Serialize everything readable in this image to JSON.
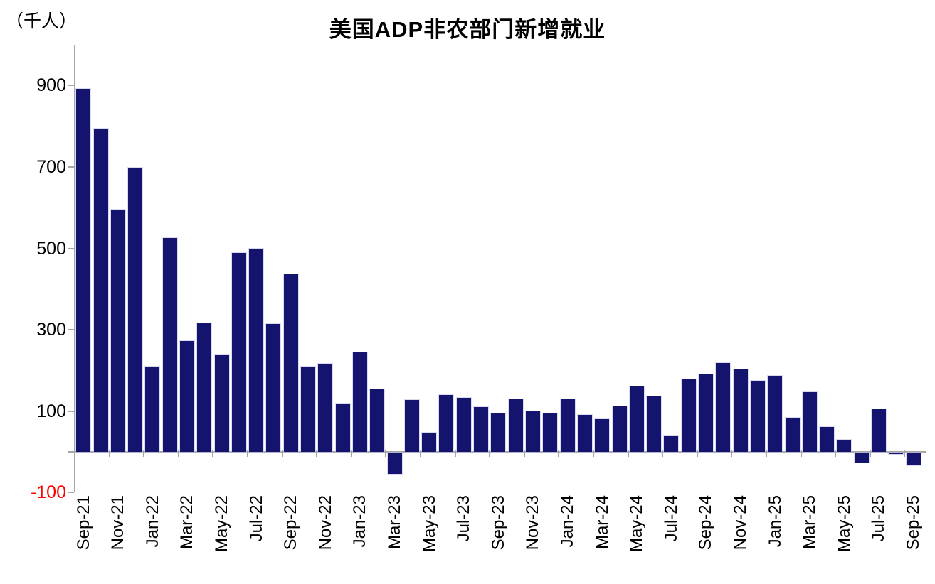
{
  "chart": {
    "title": "美国ADP非农部门新增就业",
    "unit_label": "（千人）"
  },
  "chart_data": {
    "type": "bar",
    "title": "美国ADP非农部门新增就业",
    "ylabel": "（千人）",
    "categories": [
      "Sep-21",
      "Oct-21",
      "Nov-21",
      "Dec-21",
      "Jan-22",
      "Feb-22",
      "Mar-22",
      "Apr-22",
      "May-22",
      "Jun-22",
      "Jul-22",
      "Aug-22",
      "Sep-22",
      "Oct-22",
      "Nov-22",
      "Dec-22",
      "Jan-23",
      "Feb-23",
      "Mar-23",
      "Apr-23",
      "May-23",
      "Jun-23",
      "Jul-23",
      "Aug-23",
      "Sep-23",
      "Oct-23",
      "Nov-23",
      "Dec-23",
      "Jan-24",
      "Feb-24",
      "Mar-24",
      "Apr-24",
      "May-24",
      "Jun-24",
      "Jul-24",
      "Aug-24",
      "Sep-24",
      "Oct-24",
      "Nov-24",
      "Dec-24",
      "Jan-25",
      "Feb-25",
      "Mar-25",
      "Apr-25",
      "May-25",
      "Jun-25",
      "Jul-25",
      "Aug-25",
      "Sep-25"
    ],
    "values": [
      892,
      794,
      595,
      698,
      209,
      525,
      272,
      316,
      239,
      489,
      500,
      314,
      436,
      209,
      216,
      119,
      245,
      154,
      -52,
      127,
      47,
      140,
      132,
      110,
      94,
      129,
      100,
      94,
      129,
      91,
      80,
      112,
      161,
      136,
      41,
      178,
      191,
      219,
      203,
      174,
      186,
      83,
      147,
      62,
      29,
      -25,
      104,
      -3,
      -32
    ],
    "y_ticks": [
      900,
      700,
      500,
      300,
      100,
      -100
    ],
    "ylim": [
      -100,
      1000
    ],
    "x_label_interval": 2,
    "grid": false,
    "legend": "none",
    "colors": {
      "bar": "#14146e",
      "axis": "#a6a6a6",
      "tick_label": "#000000",
      "negative_tick_label": "#ff0000"
    }
  }
}
